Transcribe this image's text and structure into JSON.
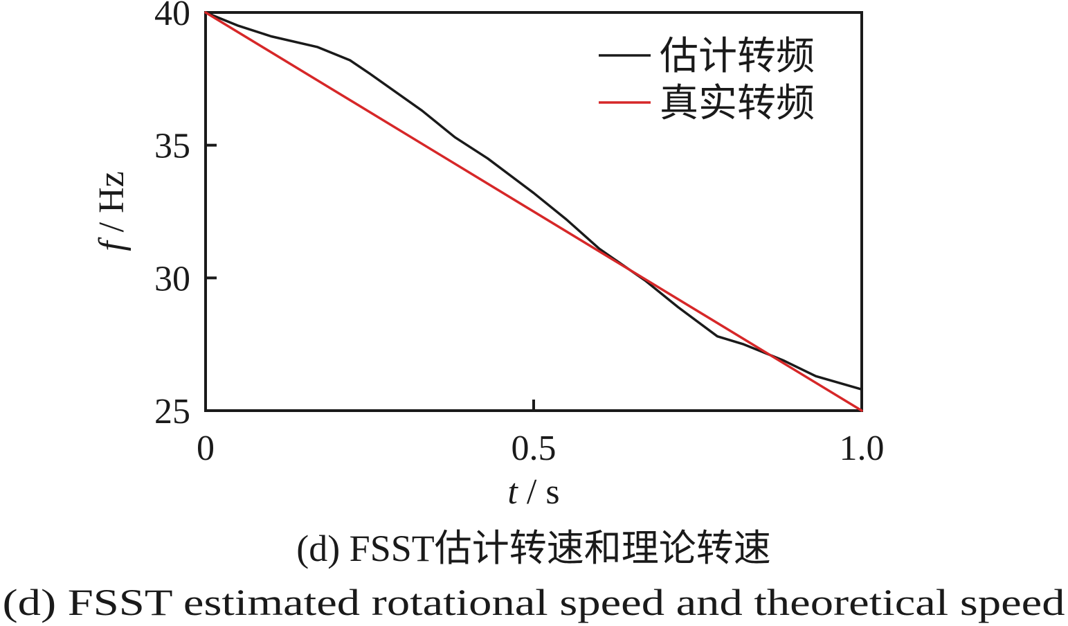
{
  "chart_data": {
    "type": "line",
    "xlabel_var": "t",
    "xlabel_unit": " / s",
    "ylabel_var": "f",
    "ylabel_unit": " / Hz",
    "xlim": [
      0,
      1.0
    ],
    "ylim": [
      25,
      40
    ],
    "x_ticks": [
      0,
      0.5,
      1.0
    ],
    "x_tick_labels": [
      "0",
      "0.5",
      "1.0"
    ],
    "y_ticks": [
      25,
      30,
      35,
      40
    ],
    "y_tick_labels": [
      "25",
      "30",
      "35",
      "40"
    ],
    "grid": false,
    "legend_position": "top-right",
    "series": [
      {
        "name": "估计转频",
        "color": "#1a1a1a",
        "x": [
          0,
          0.05,
          0.1,
          0.17,
          0.22,
          0.25,
          0.33,
          0.38,
          0.43,
          0.5,
          0.55,
          0.6,
          0.67,
          0.72,
          0.78,
          0.82,
          0.88,
          0.93,
          1.0
        ],
        "y": [
          40.0,
          39.5,
          39.1,
          38.7,
          38.2,
          37.7,
          36.3,
          35.3,
          34.5,
          33.2,
          32.2,
          31.1,
          29.9,
          28.9,
          27.8,
          27.5,
          26.9,
          26.3,
          25.8
        ]
      },
      {
        "name": "真实转频",
        "color": "#d62728",
        "x": [
          0,
          1.0
        ],
        "y": [
          40.0,
          25.0
        ]
      }
    ]
  },
  "caption": {
    "cn_prefix": "(d)  FSST",
    "cn_text": "估计转速和理论转速",
    "en": "(d)  FSST estimated rotational speed and theoretical speed"
  }
}
